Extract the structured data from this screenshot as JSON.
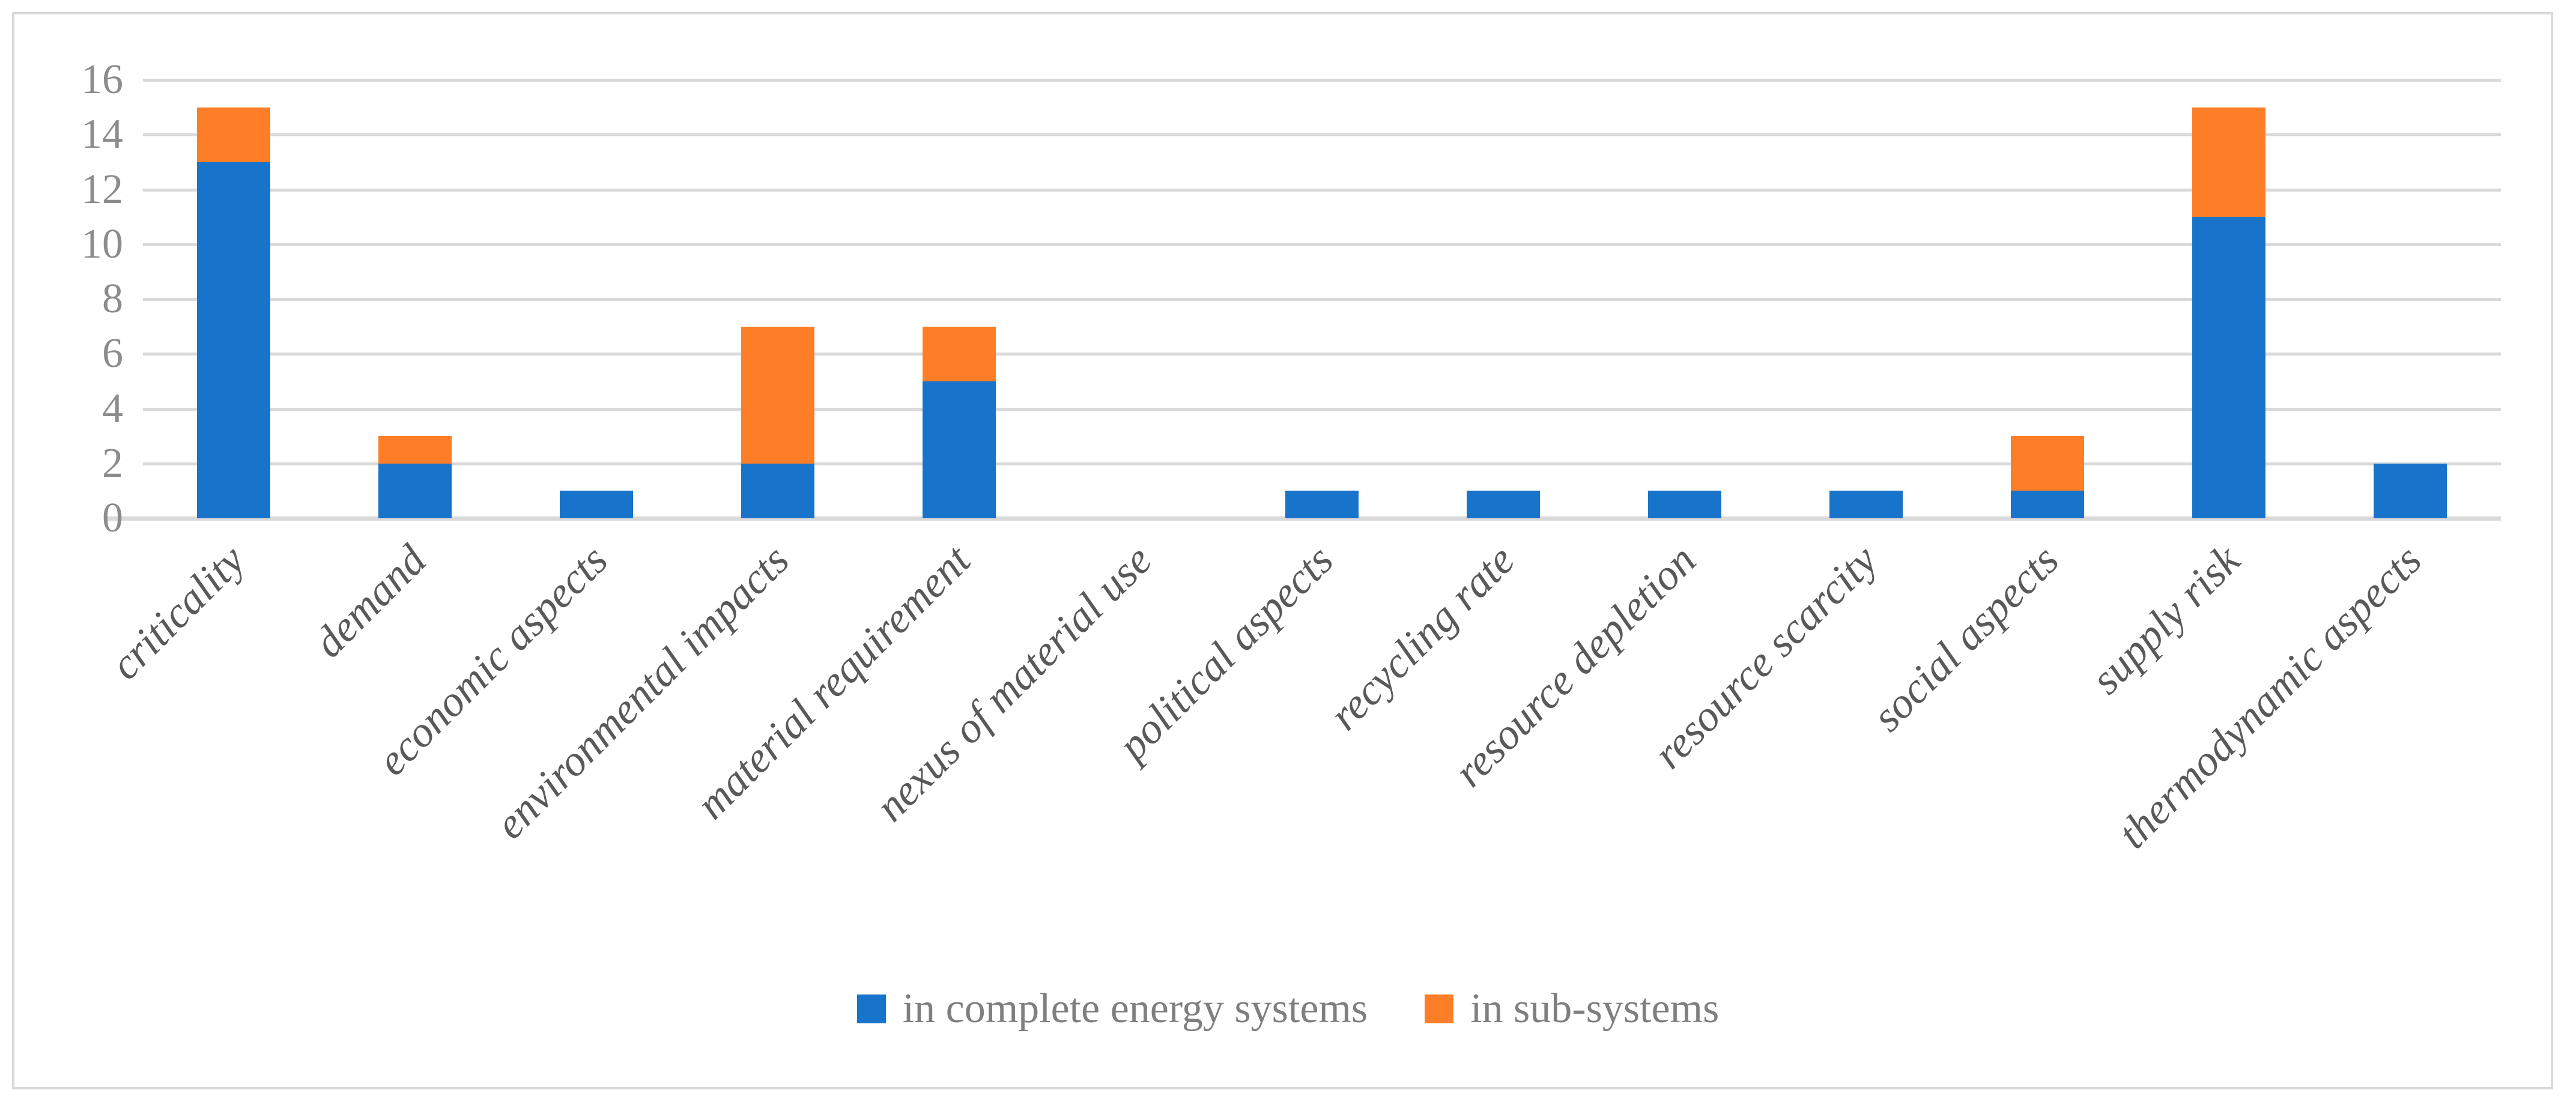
{
  "figure": {
    "background_color": "#FFFFFF",
    "border_color": "#D9D9D9"
  },
  "chart_data": {
    "type": "bar",
    "stacked": true,
    "orientation": "vertical",
    "title": "",
    "xlabel": "",
    "ylabel": "",
    "categories": [
      "criticality",
      "demand",
      "economic aspects",
      "environmental impacts",
      "material requirement",
      "nexus of material use",
      "political aspects",
      "recycling rate",
      "resource depletion",
      "resource scarcity",
      "social aspects",
      "supply risk",
      "thermodynamic aspects"
    ],
    "series": [
      {
        "name": "in complete energy systems",
        "color": "#1874CB",
        "values": [
          13,
          2,
          1,
          2,
          5,
          0,
          1,
          1,
          1,
          1,
          1,
          11,
          2
        ]
      },
      {
        "name": "in sub-systems",
        "color": "#FD7E26",
        "values": [
          2,
          1,
          0,
          5,
          2,
          0,
          0,
          0,
          0,
          0,
          2,
          4,
          0
        ]
      }
    ],
    "totals": [
      15,
      3,
      1,
      7,
      7,
      0,
      1,
      1,
      1,
      1,
      3,
      15,
      2
    ],
    "ylim": [
      0,
      16
    ],
    "yticks": [
      0,
      2,
      4,
      6,
      8,
      10,
      12,
      14,
      16
    ],
    "grid": "horizontal",
    "gridline_color": "#D9D9D9",
    "axis_line_color": "#D9D9D9",
    "tick_label_color": "#8C8C8C",
    "category_label_color": "#595959",
    "category_label_rotation_deg": 45,
    "legend_position": "bottom-center",
    "legend_text_color": "#7F7F7F"
  }
}
